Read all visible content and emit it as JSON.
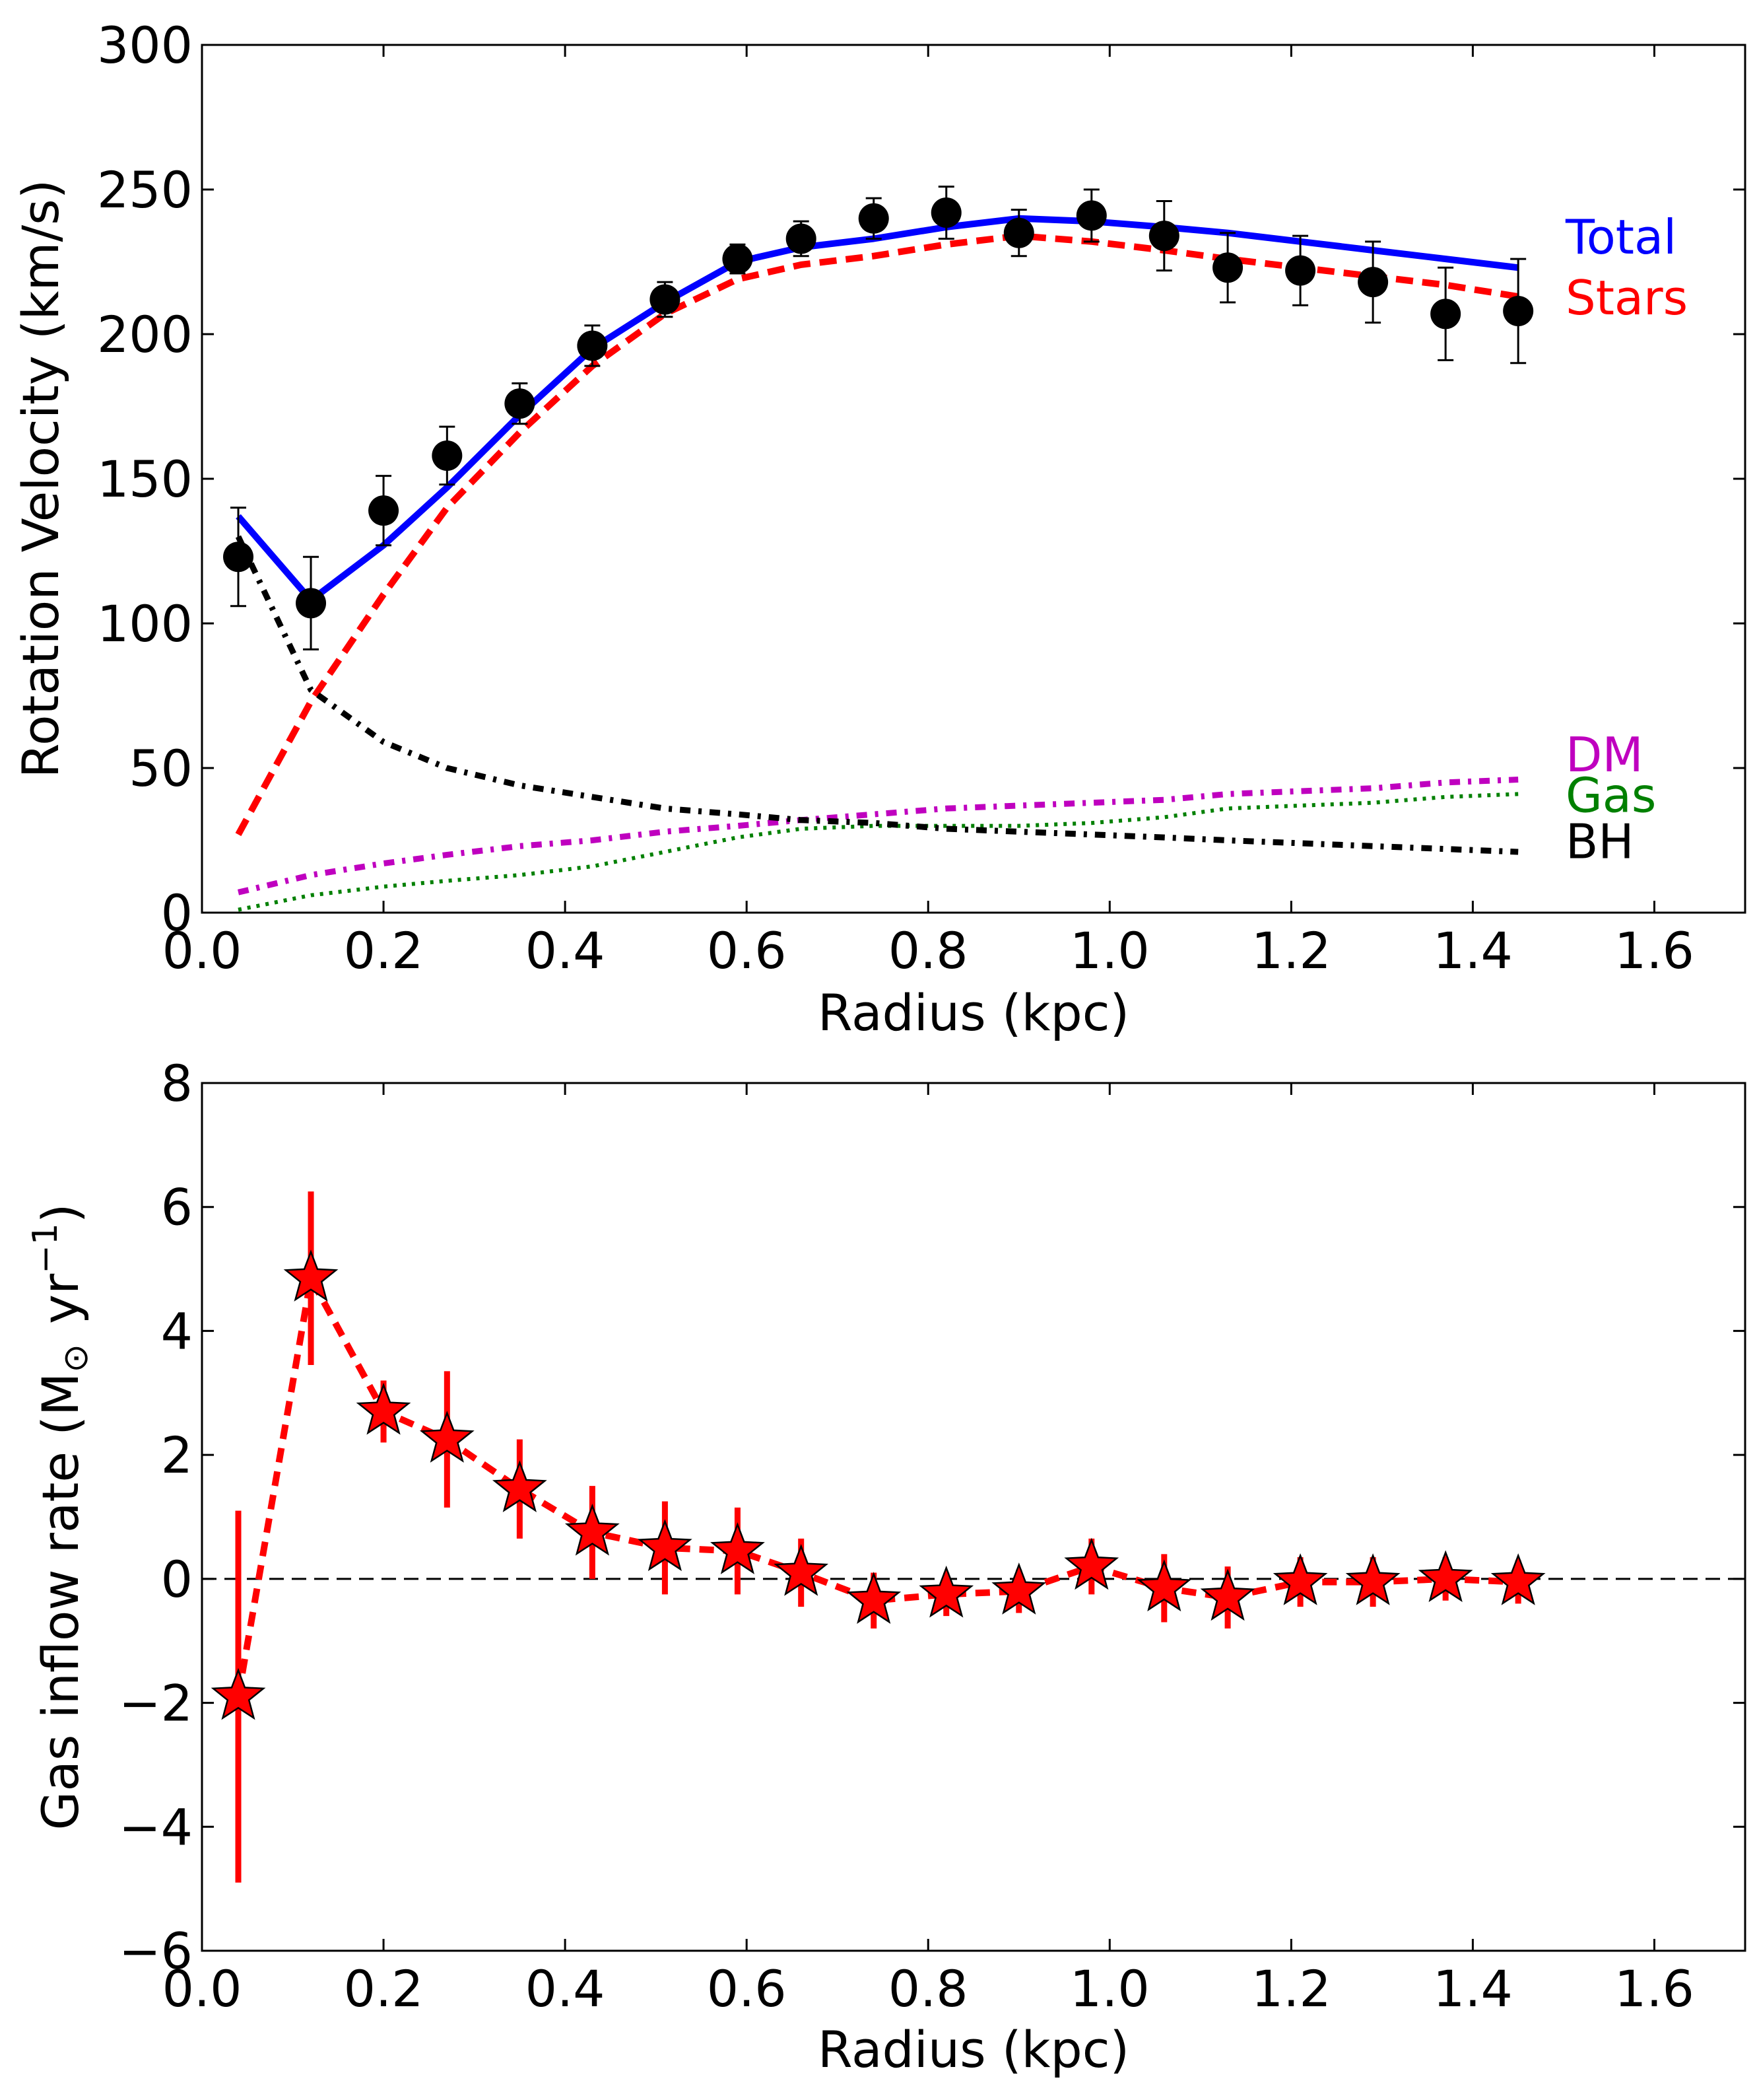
{
  "chart_data": [
    {
      "type": "line",
      "xlabel": "Radius (kpc)",
      "ylabel": "Rotation Velocity (km/s)",
      "xlim": [
        0.0,
        1.7
      ],
      "ylim": [
        0,
        300
      ],
      "xticks": [
        0.0,
        0.2,
        0.4,
        0.6,
        0.8,
        1.0,
        1.2,
        1.4,
        1.6
      ],
      "xtick_labels": [
        "0.0",
        "0.2",
        "0.4",
        "0.6",
        "0.8",
        "1.0",
        "1.2",
        "1.4",
        "1.6"
      ],
      "yticks": [
        0,
        50,
        100,
        150,
        200,
        250,
        300
      ],
      "ytick_labels": [
        "0",
        "50",
        "100",
        "150",
        "200",
        "250",
        "300"
      ],
      "grid": false,
      "legend": "right, text labels beside curves",
      "observed": {
        "x": [
          0.04,
          0.12,
          0.2,
          0.27,
          0.35,
          0.43,
          0.51,
          0.59,
          0.66,
          0.74,
          0.82,
          0.9,
          0.98,
          1.06,
          1.13,
          1.21,
          1.29,
          1.37,
          1.45
        ],
        "y": [
          123,
          107,
          139,
          158,
          176,
          196,
          212,
          226,
          233,
          240,
          242,
          235,
          241,
          234,
          223,
          222,
          218,
          207,
          208
        ],
        "err": [
          17,
          16,
          12,
          10,
          7,
          7,
          6,
          5,
          6,
          7,
          9,
          8,
          9,
          12,
          12,
          12,
          14,
          16,
          18
        ],
        "color": "#000000"
      },
      "series": [
        {
          "name": "Total",
          "color": "#0000ff",
          "style": "solid",
          "x": [
            0.04,
            0.12,
            0.2,
            0.27,
            0.35,
            0.43,
            0.51,
            0.59,
            0.66,
            0.74,
            0.82,
            0.9,
            0.98,
            1.06,
            1.13,
            1.21,
            1.29,
            1.37,
            1.45
          ],
          "values": [
            137,
            108,
            127,
            147,
            172,
            195,
            211,
            225,
            230,
            233,
            237,
            240,
            239,
            237,
            235,
            232,
            229,
            226,
            223
          ]
        },
        {
          "name": "Stars",
          "color": "#ff0000",
          "style": "dashed",
          "x": [
            0.04,
            0.12,
            0.2,
            0.27,
            0.35,
            0.43,
            0.51,
            0.59,
            0.66,
            0.74,
            0.82,
            0.9,
            0.98,
            1.06,
            1.13,
            1.21,
            1.29,
            1.37,
            1.45
          ],
          "values": [
            27,
            73,
            110,
            140,
            166,
            189,
            207,
            219,
            224,
            227,
            231,
            234,
            232,
            229,
            226,
            223,
            220,
            217,
            213
          ]
        },
        {
          "name": "DM",
          "color": "#bf00bf",
          "style": "dashdot",
          "x": [
            0.04,
            0.12,
            0.2,
            0.27,
            0.35,
            0.43,
            0.51,
            0.59,
            0.66,
            0.74,
            0.82,
            0.9,
            0.98,
            1.06,
            1.13,
            1.21,
            1.29,
            1.37,
            1.45
          ],
          "values": [
            7,
            13,
            17,
            20,
            23,
            25,
            28,
            30,
            32,
            34,
            36,
            37,
            38,
            39,
            41,
            42,
            43,
            45,
            46
          ]
        },
        {
          "name": "Gas",
          "color": "#008000",
          "style": "dotted",
          "x": [
            0.04,
            0.12,
            0.2,
            0.27,
            0.35,
            0.43,
            0.51,
            0.59,
            0.66,
            0.74,
            0.82,
            0.9,
            0.98,
            1.06,
            1.13,
            1.21,
            1.29,
            1.37,
            1.45
          ],
          "values": [
            1,
            6,
            9,
            11,
            13,
            16,
            21,
            26,
            29,
            30,
            30,
            30,
            31,
            33,
            36,
            37,
            38,
            40,
            41
          ]
        },
        {
          "name": "BH",
          "color": "#000000",
          "style": "dashdot",
          "x": [
            0.04,
            0.12,
            0.2,
            0.27,
            0.35,
            0.43,
            0.51,
            0.59,
            0.66,
            0.74,
            0.82,
            0.9,
            0.98,
            1.06,
            1.13,
            1.21,
            1.29,
            1.37,
            1.45
          ],
          "values": [
            130,
            77,
            59,
            50,
            44,
            40,
            36,
            34,
            32,
            31,
            29,
            28,
            27,
            26,
            25,
            24,
            23,
            22,
            21
          ]
        }
      ]
    },
    {
      "type": "line",
      "xlabel": "Radius (kpc)",
      "ylabel_main": "Gas inflow rate (M",
      "ylabel_sub": "⊙",
      "ylabel_unit": "yr",
      "ylabel_sup": "−1",
      "ylabel_close": ")",
      "xlim": [
        0.0,
        1.7
      ],
      "ylim": [
        -6,
        8
      ],
      "xticks": [
        0.0,
        0.2,
        0.4,
        0.6,
        0.8,
        1.0,
        1.2,
        1.4,
        1.6
      ],
      "xtick_labels": [
        "0.0",
        "0.2",
        "0.4",
        "0.6",
        "0.8",
        "1.0",
        "1.2",
        "1.4",
        "1.6"
      ],
      "yticks": [
        -6,
        -4,
        -2,
        0,
        2,
        4,
        6,
        8
      ],
      "ytick_labels": [
        "−6",
        "−4",
        "−2",
        "0",
        "2",
        "4",
        "6",
        "8"
      ],
      "grid": false,
      "reference_line": 0,
      "series": [
        {
          "name": "Gas inflow rate",
          "color": "#ff0000",
          "marker": "star",
          "style": "dashed",
          "x": [
            0.04,
            0.12,
            0.2,
            0.27,
            0.35,
            0.43,
            0.51,
            0.59,
            0.66,
            0.74,
            0.82,
            0.9,
            0.98,
            1.06,
            1.13,
            1.21,
            1.29,
            1.37,
            1.45
          ],
          "values": [
            -1.9,
            4.85,
            2.7,
            2.25,
            1.45,
            0.75,
            0.5,
            0.45,
            0.1,
            -0.35,
            -0.25,
            -0.2,
            0.2,
            -0.15,
            -0.3,
            -0.05,
            -0.05,
            0.0,
            -0.05
          ],
          "err": [
            3.0,
            1.4,
            0.5,
            1.1,
            0.8,
            0.75,
            0.75,
            0.7,
            0.55,
            0.45,
            0.35,
            0.35,
            0.45,
            0.55,
            0.5,
            0.4,
            0.4,
            0.35,
            0.35
          ]
        }
      ]
    }
  ]
}
